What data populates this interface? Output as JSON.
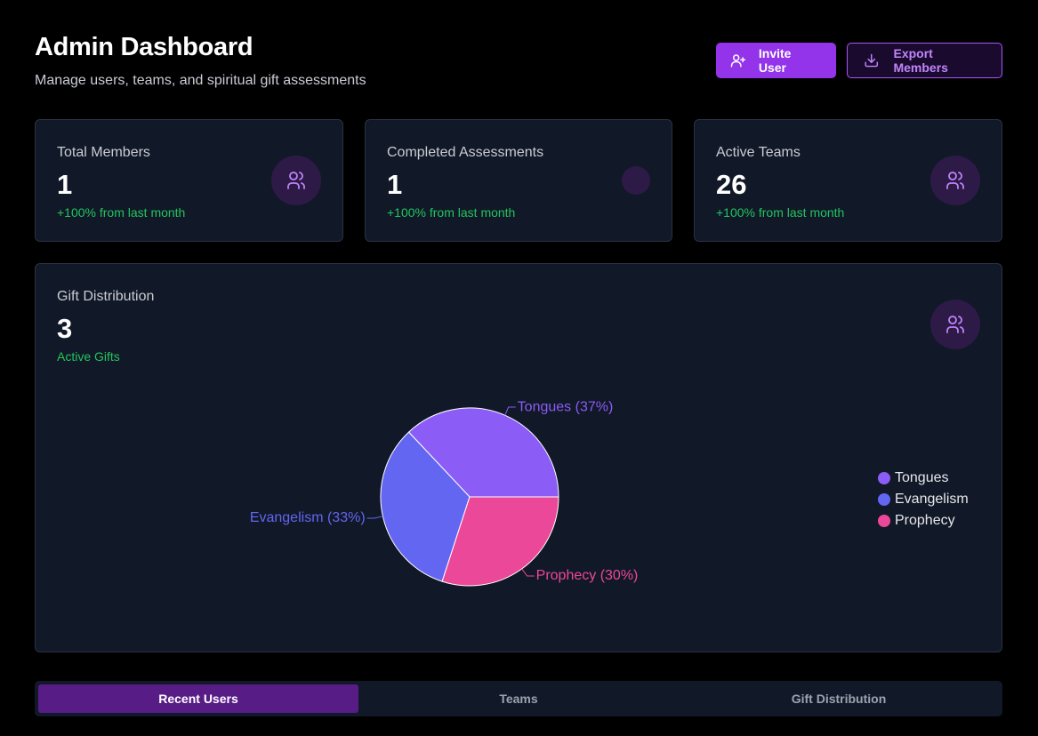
{
  "header": {
    "title": "Admin Dashboard",
    "subtitle": "Manage users, teams, and spiritual gift assessments",
    "invite_label": "Invite User",
    "export_label": "Export Members"
  },
  "stats": [
    {
      "label": "Total Members",
      "value": "1",
      "change": "+100% from last month",
      "icon": "users-icon"
    },
    {
      "label": "Completed Assessments",
      "value": "1",
      "change": "+100% from last month",
      "icon": ""
    },
    {
      "label": "Active Teams",
      "value": "26",
      "change": "+100% from last month",
      "icon": "users-icon"
    }
  ],
  "gift_card": {
    "label": "Gift Distribution",
    "value": "3",
    "sublabel": "Active Gifts",
    "icon": "users-icon"
  },
  "chart_data": {
    "type": "pie",
    "slices": [
      {
        "name": "Tongues",
        "value": 37,
        "label": "Tongues (37%)",
        "color": "#8b5cf6"
      },
      {
        "name": "Evangelism",
        "value": 33,
        "label": "Evangelism (33%)",
        "color": "#6366f1"
      },
      {
        "name": "Prophecy",
        "value": 30,
        "label": "Prophecy (30%)",
        "color": "#ec4899"
      }
    ],
    "legend": [
      "Tongues",
      "Evangelism",
      "Prophecy"
    ],
    "legend_position": "right"
  },
  "tabs": [
    {
      "label": "Recent Users",
      "active": true
    },
    {
      "label": "Teams",
      "active": false
    },
    {
      "label": "Gift Distribution",
      "active": false
    }
  ],
  "colors": {
    "accent": "#9333ea",
    "positive": "#22c55e",
    "card_bg": "#111827"
  }
}
